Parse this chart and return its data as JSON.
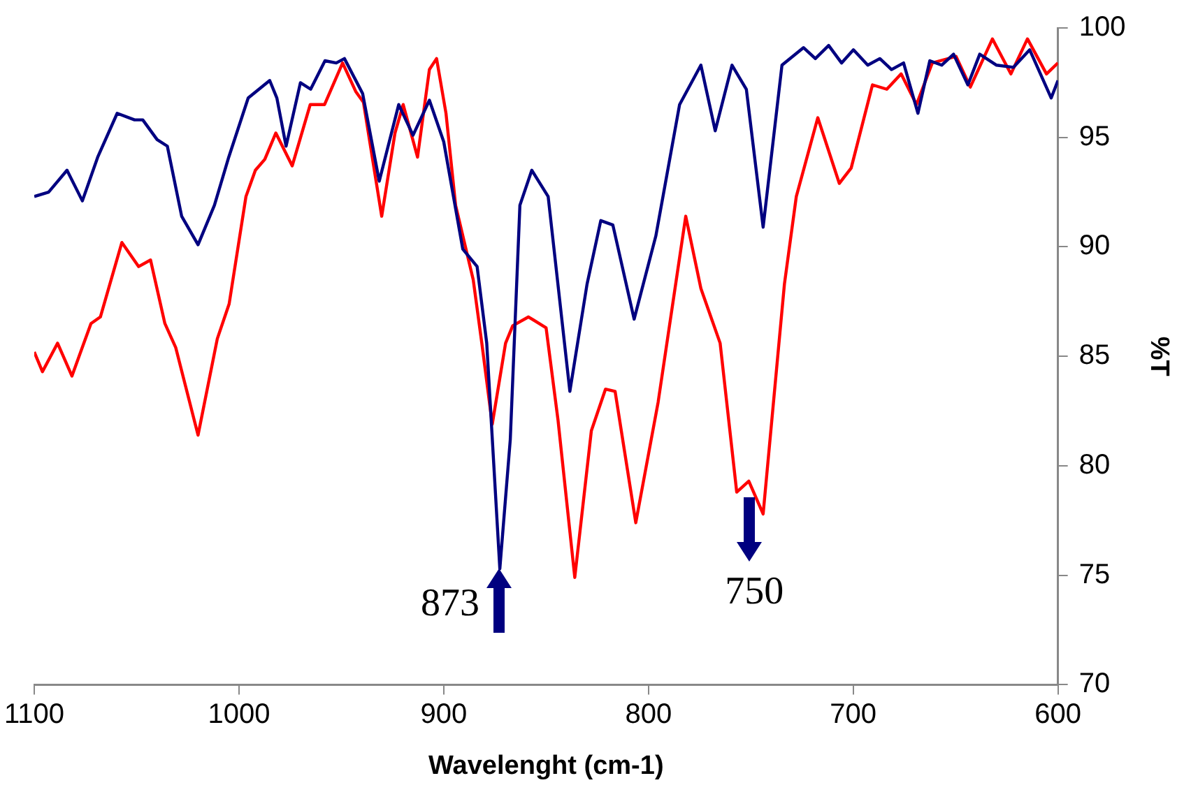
{
  "chart_data": {
    "type": "line",
    "xlabel": "Wavelenght (cm-1)",
    "ylabel": "%T",
    "xlim": [
      1100,
      600
    ],
    "xticks": [
      1100,
      1000,
      900,
      800,
      700,
      600
    ],
    "ylim": [
      70,
      100
    ],
    "yticks": [
      70,
      75,
      80,
      85,
      90,
      95,
      100
    ],
    "grid": false,
    "legend": false,
    "marker": "none",
    "line_style": "solid",
    "annotations": [
      {
        "text": "873",
        "x": 873,
        "y": 75.3
      },
      {
        "text": "750",
        "x": 751,
        "y": 79.3
      }
    ],
    "series": [
      {
        "color": "#000080",
        "x": [
          1100,
          1093,
          1084,
          1076.5,
          1069,
          1059.5,
          1051,
          1047,
          1040,
          1035,
          1028,
          1020,
          1012,
          1005,
          995.5,
          985,
          981.5,
          977,
          970,
          965,
          958,
          952.5,
          948.5,
          939.6,
          931.5,
          922,
          915,
          907,
          900,
          890.7,
          883.7,
          879,
          872.6,
          867.5,
          862.8,
          857,
          849,
          838.4,
          830,
          823.3,
          817.4,
          807,
          796.4,
          784.8,
          774.4,
          767.4,
          759.2,
          752.2,
          744,
          734.8,
          724.3,
          718.5,
          712,
          705.7,
          699.9,
          692.9,
          687,
          681.3,
          675.4,
          668.4,
          662.6,
          656.8,
          651,
          644,
          638.2,
          630,
          621.8,
          613.8,
          603.3,
          600
        ],
        "values": [
          92.3,
          92.5,
          93.5,
          92.1,
          94.1,
          96.1,
          95.8,
          95.8,
          94.9,
          94.6,
          91.4,
          90.1,
          91.9,
          94.1,
          96.8,
          97.6,
          96.8,
          94.6,
          97.5,
          97.2,
          98.5,
          98.4,
          98.6,
          97,
          93,
          96.5,
          95.1,
          96.7,
          94.8,
          89.9,
          89.1,
          85.6,
          75.3,
          81.2,
          91.9,
          93.5,
          92.3,
          83.4,
          88.3,
          91.2,
          91,
          86.7,
          90.5,
          96.5,
          98.3,
          95.3,
          98.3,
          97.2,
          90.9,
          98.3,
          99.1,
          98.6,
          99.2,
          98.4,
          99,
          98.3,
          98.6,
          98.1,
          98.4,
          96.1,
          98.5,
          98.3,
          98.8,
          97.4,
          98.8,
          98.3,
          98.2,
          99,
          96.8,
          97.6
        ]
      },
      {
        "color": "#ff0000",
        "x": [
          1100,
          1096,
          1088.6,
          1081.6,
          1072.3,
          1067.7,
          1057.2,
          1049,
          1043.2,
          1036.2,
          1030.9,
          1020,
          1010.6,
          1004.8,
          996.6,
          992,
          987.4,
          982,
          974,
          965.2,
          958.2,
          949.4,
          943,
          939.2,
          930.3,
          923.8,
          919.8,
          912.8,
          907,
          903.5,
          898.9,
          894.2,
          885.6,
          881.4,
          876.3,
          869.8,
          866.3,
          858.6,
          850,
          844.2,
          836,
          827.9,
          821,
          816.3,
          806.2,
          795.3,
          781.8,
          774.4,
          765,
          756.9,
          751,
          744,
          733.6,
          727.8,
          717.3,
          706.8,
          701,
          690.6,
          683.6,
          676.6,
          669.1,
          661.4,
          649.8,
          642.8,
          632,
          623,
          614.9,
          605.6,
          600
        ],
        "values": [
          85.2,
          84.3,
          85.6,
          84.1,
          86.5,
          86.8,
          90.2,
          89.1,
          89.4,
          86.5,
          85.4,
          81.4,
          85.8,
          87.4,
          92.3,
          93.5,
          94,
          95.2,
          93.7,
          96.5,
          96.5,
          98.4,
          97.1,
          96.6,
          91.4,
          95.2,
          96.5,
          94.1,
          98.1,
          98.6,
          96.1,
          91.9,
          88.5,
          85.6,
          81.9,
          85.6,
          86.4,
          86.8,
          86.3,
          82.1,
          74.9,
          81.6,
          83.5,
          83.4,
          77.4,
          82.9,
          91.4,
          88.1,
          85.6,
          78.8,
          79.3,
          77.8,
          88.3,
          92.3,
          95.9,
          92.9,
          93.6,
          97.4,
          97.2,
          97.9,
          96.5,
          98.4,
          98.7,
          97.3,
          99.5,
          97.9,
          99.5,
          97.9,
          98.4
        ]
      }
    ]
  }
}
